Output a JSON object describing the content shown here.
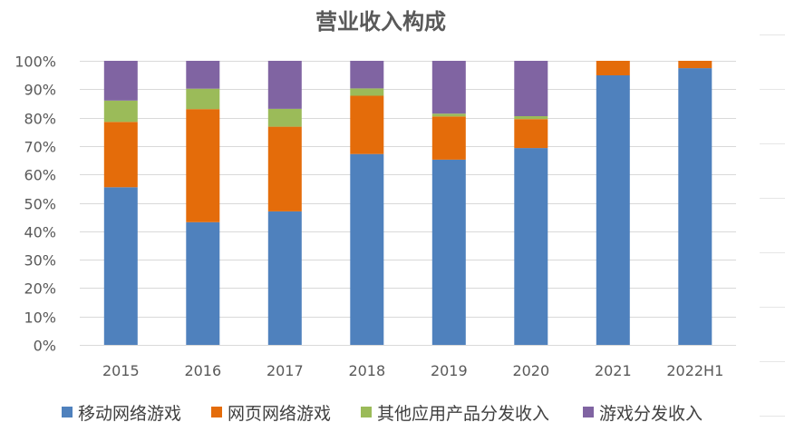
{
  "chart_data": {
    "type": "bar",
    "stacked": true,
    "title": "营业收入构成",
    "xlabel": "",
    "ylabel": "",
    "ylim": [
      0,
      100
    ],
    "y_ticks": [
      "0%",
      "10%",
      "20%",
      "30%",
      "40%",
      "50%",
      "60%",
      "70%",
      "80%",
      "90%",
      "100%"
    ],
    "categories": [
      "2015",
      "2016",
      "2017",
      "2018",
      "2019",
      "2020",
      "2021",
      "2022H1"
    ],
    "series": [
      {
        "name": "移动网络游戏",
        "color": "#4f81bd",
        "values": [
          55.5,
          43.2,
          47.0,
          67.2,
          65.2,
          69.3,
          94.9,
          97.4
        ]
      },
      {
        "name": "网页网络游戏",
        "color": "#e46c0a",
        "values": [
          23.0,
          39.8,
          29.8,
          20.5,
          15.2,
          10.2,
          5.1,
          2.6
        ]
      },
      {
        "name": "其他应用产品分发收入",
        "color": "#9bbb59",
        "values": [
          7.5,
          7.2,
          6.3,
          2.6,
          1.0,
          1.0,
          0,
          0
        ]
      },
      {
        "name": "游戏分发收入",
        "color": "#8064a2",
        "values": [
          14.0,
          9.8,
          16.9,
          9.7,
          18.6,
          19.5,
          0,
          0
        ]
      }
    ],
    "grid": true,
    "legend_position": "bottom"
  }
}
